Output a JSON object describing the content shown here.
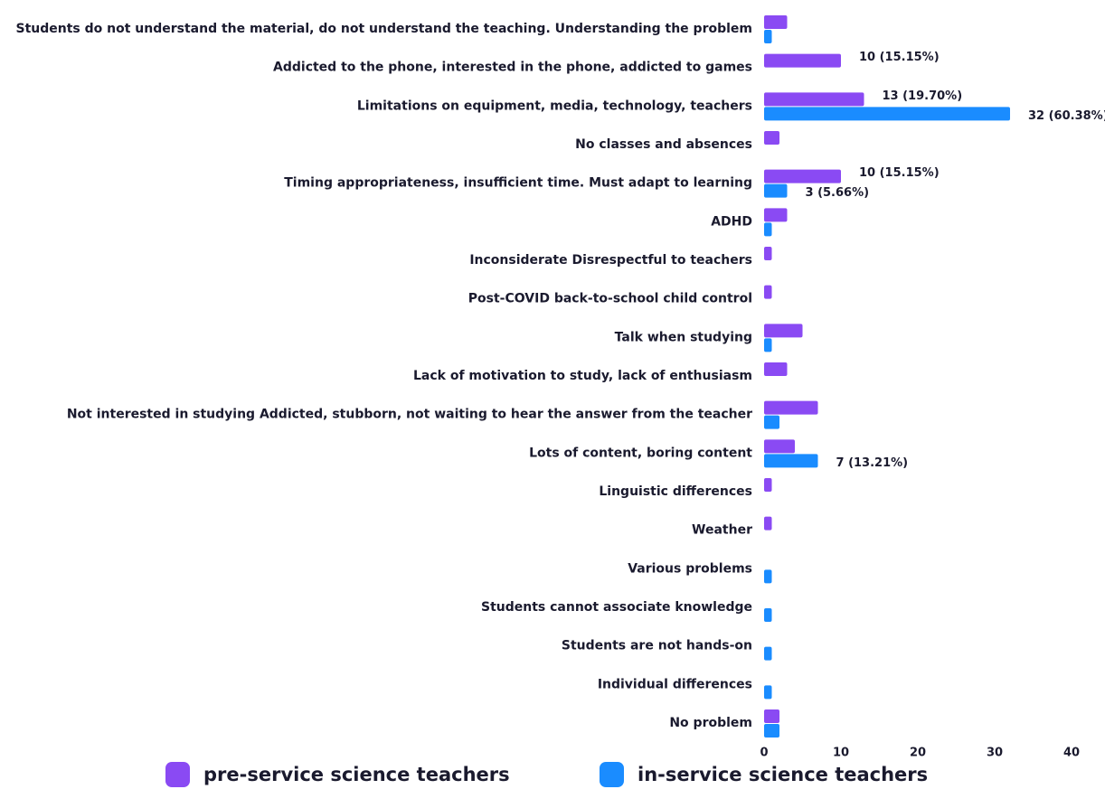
{
  "chart_data": {
    "type": "hbar",
    "categories": [
      "Students do not understand the material, do not understand the teaching. Understanding the problem",
      "Addicted to the phone, interested in the phone, addicted to games",
      "Limitations on equipment, media, technology, teachers",
      "No classes and absences",
      "Timing appropriateness, insufficient time. Must adapt to learning",
      "ADHD",
      "Inconsiderate Disrespectful to teachers",
      "Post-COVID back-to-school child control",
      "Talk when studying",
      "Lack of motivation to study, lack of enthusiasm",
      "Not interested in studying Addicted, stubborn, not waiting to hear the answer from the teacher",
      "Lots of content, boring content",
      "Linguistic differences",
      "Weather",
      "Various problems",
      "Students cannot associate knowledge",
      "Students are not hands-on",
      "Individual differences",
      "No problem"
    ],
    "series": [
      {
        "name": "pre-service science teachers",
        "color": "#8a4af3",
        "values": [
          3,
          10,
          13,
          2,
          10,
          3,
          1,
          1,
          5,
          3,
          7,
          4,
          1,
          1,
          0,
          0,
          0,
          0,
          2
        ],
        "value_labels": [
          null,
          "10 (15.15%)",
          "13 (19.70%)",
          null,
          "10 (15.15%)",
          null,
          null,
          null,
          null,
          null,
          null,
          null,
          null,
          null,
          null,
          null,
          null,
          null,
          null
        ]
      },
      {
        "name": "in-service science teachers",
        "color": "#1a8cff",
        "values": [
          1,
          0,
          32,
          0,
          3,
          1,
          0,
          0,
          1,
          0,
          2,
          7,
          0,
          0,
          1,
          1,
          1,
          1,
          2
        ],
        "value_labels": [
          null,
          null,
          "32 (60.38%)",
          null,
          "3 (5.66%)",
          null,
          null,
          null,
          null,
          null,
          null,
          "7 (13.21%)",
          null,
          null,
          null,
          null,
          null,
          null,
          null
        ]
      }
    ],
    "xlim": [
      0,
      40
    ],
    "xticks": [
      0,
      10,
      20,
      30,
      40
    ]
  }
}
